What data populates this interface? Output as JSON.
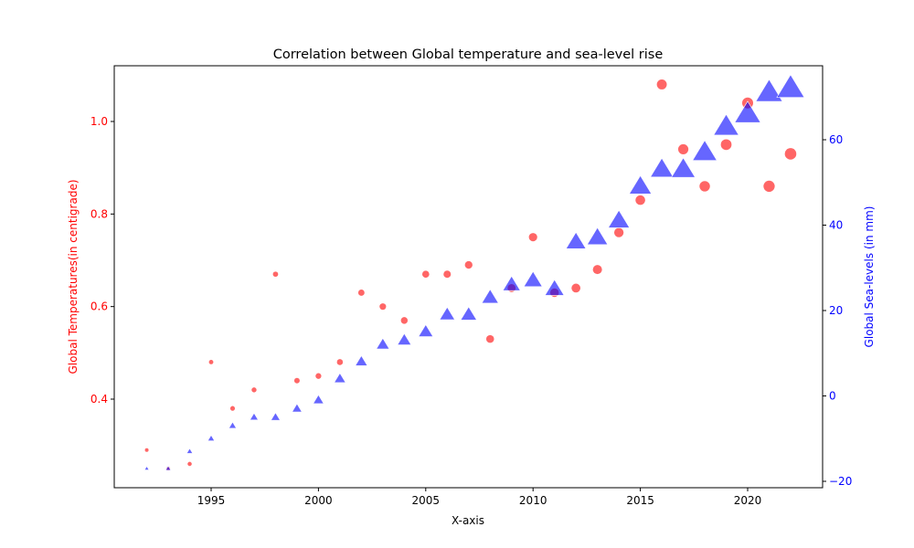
{
  "chart_data": {
    "type": "scatter",
    "title": "Correlation between Global temperature and sea-level rise",
    "xlabel": "X-axis",
    "ylabel_left": "Global Temperatures(in centigrade)",
    "ylabel_right": "Global Sea-levels (in mm)",
    "xlim": [
      1991.0,
      2023.5
    ],
    "ylim_left": [
      0.2,
      1.12
    ],
    "ylim_right": [
      -21,
      77
    ],
    "x_ticks": [
      1995,
      2000,
      2005,
      2010,
      2015,
      2020
    ],
    "y_left_ticks": [
      "0.4",
      "0.6",
      "0.8",
      "1.0"
    ],
    "y_right_ticks": [
      "−20",
      "0",
      "20",
      "40",
      "60"
    ],
    "grid": false,
    "legend": "none",
    "colors": {
      "temperature": "#ff0000",
      "sea_level": "#0000ff",
      "alpha": 0.6
    },
    "x": [
      1992,
      1993,
      1994,
      1995,
      1996,
      1997,
      1998,
      1999,
      2000,
      2001,
      2002,
      2003,
      2004,
      2005,
      2006,
      2007,
      2008,
      2009,
      2010,
      2011,
      2012,
      2013,
      2014,
      2015,
      2016,
      2017,
      2018,
      2019,
      2020,
      2021,
      2022
    ],
    "series": [
      {
        "name": "Global Temperatures(in centigrade)",
        "axis": "left",
        "marker": "circle",
        "color": "#ff0000",
        "values": [
          0.29,
          0.25,
          0.26,
          0.48,
          0.38,
          0.42,
          0.67,
          0.44,
          0.45,
          0.48,
          0.63,
          0.6,
          0.57,
          0.67,
          0.67,
          0.69,
          0.53,
          0.64,
          0.75,
          0.63,
          0.64,
          0.68,
          0.76,
          0.83,
          1.08,
          0.94,
          0.86,
          0.95,
          1.04,
          0.86,
          0.93
        ]
      },
      {
        "name": "Global Sea-levels (in mm)",
        "axis": "right",
        "marker": "triangle",
        "color": "#0000ff",
        "values": [
          -17,
          -17,
          -13,
          -10,
          -7,
          -5,
          -5,
          -3,
          -1,
          4,
          8,
          12,
          13,
          15,
          19,
          19,
          23,
          26,
          27,
          25,
          36,
          37,
          41,
          49,
          53,
          53,
          57,
          63,
          66,
          71,
          72
        ]
      }
    ]
  }
}
